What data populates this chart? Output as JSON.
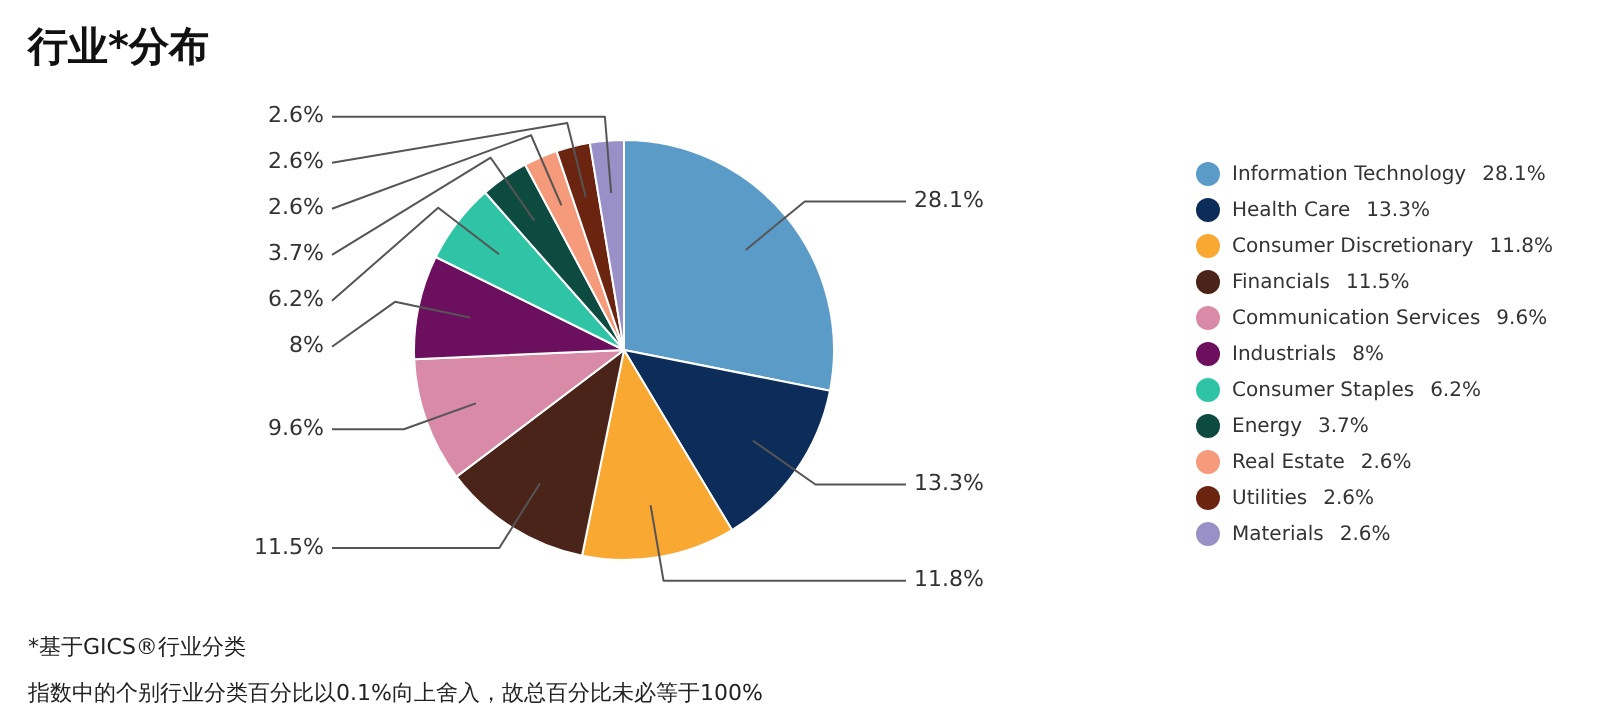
{
  "chart_data": {
    "type": "pie",
    "title": "行业*分布",
    "categories": [
      "Information Technology",
      "Health Care",
      "Consumer Discretionary",
      "Financials",
      "Communication Services",
      "Industrials",
      "Consumer Staples",
      "Energy",
      "Real Estate",
      "Utilities",
      "Materials"
    ],
    "values": [
      28.1,
      13.3,
      11.8,
      11.5,
      9.6,
      8,
      6.2,
      3.7,
      2.6,
      2.6,
      2.6
    ],
    "value_labels": [
      "28.1%",
      "13.3%",
      "11.8%",
      "11.5%",
      "9.6%",
      "8%",
      "6.2%",
      "3.7%",
      "2.6%",
      "2.6%",
      "2.6%"
    ],
    "colors": [
      "#5b9bc8",
      "#0c2d5a",
      "#f9a832",
      "#4a2418",
      "#d98aa6",
      "#6b0f5e",
      "#2ec4a5",
      "#0d4a3f",
      "#f59a7a",
      "#6b2410",
      "#9a90c8"
    ],
    "legend": "right",
    "annotations": [
      "*基于GICS®行业分类",
      "指数中的个别行业分类百分比以0.1%向上舍入，故总百分比未必等于100%"
    ]
  }
}
